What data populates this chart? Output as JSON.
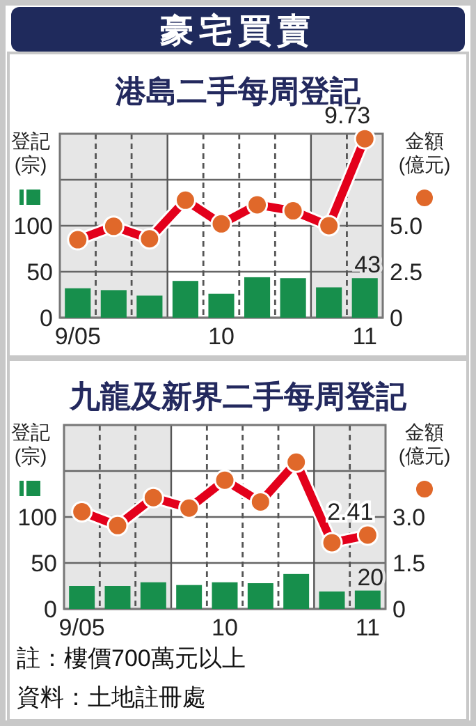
{
  "chart_data": [
    {
      "type": "other",
      "title": "豪宅買賣"
    },
    {
      "type": "bar",
      "title": "港島二手每周登記",
      "ylabel": "登記\n(宗)",
      "y2label": "金額\n(億元)",
      "categories": [
        "9/05",
        null,
        null,
        null,
        "10",
        null,
        null,
        null,
        "11"
      ],
      "series": [
        {
          "type": "bar",
          "color": "#178f4c",
          "values": [
            32,
            30,
            24,
            40,
            26,
            44,
            43,
            33,
            43
          ],
          "value_labels": [
            null,
            null,
            null,
            null,
            null,
            null,
            null,
            null,
            "43"
          ]
        },
        {
          "type": "line",
          "axis": "y2",
          "color": "#e3001b",
          "marker": "circle",
          "values": [
            4.24,
            4.97,
            4.29,
            6.39,
            5.1,
            6.14,
            5.81,
            5.0,
            9.73
          ],
          "value_labels": [
            null,
            null,
            null,
            null,
            null,
            null,
            null,
            null,
            "9.73"
          ]
        }
      ],
      "ylim": [
        0,
        200
      ],
      "yticks": [
        0,
        50,
        100,
        {
          "value": 150,
          "label": null
        }
      ],
      "y2lim": [
        0,
        10
      ],
      "y2ticks": [
        0,
        {
          "value": 2.5,
          "label": "2.5"
        },
        {
          "value": 5,
          "label": "5.0"
        }
      ],
      "grid": true
    },
    {
      "type": "bar",
      "title": "九龍及新界二手每周登記",
      "ylabel": "登記\n(宗)",
      "y2label": "金額\n(億元)",
      "categories": [
        "9/05",
        null,
        null,
        null,
        "10",
        null,
        null,
        null,
        "11"
      ],
      "series": [
        {
          "type": "bar",
          "color": "#178f4c",
          "values": [
            25,
            25,
            29,
            26,
            29,
            28,
            38,
            19,
            20
          ],
          "value_labels": [
            null,
            null,
            null,
            null,
            null,
            null,
            null,
            null,
            "20"
          ]
        },
        {
          "type": "line",
          "axis": "y2",
          "color": "#e3001b",
          "marker": "circle",
          "values": [
            3.17,
            2.72,
            3.63,
            3.29,
            4.2,
            3.49,
            4.79,
            2.16,
            2.41
          ],
          "value_labels": [
            null,
            null,
            null,
            null,
            null,
            null,
            null,
            null,
            "2.41"
          ]
        }
      ],
      "ylim": [
        0,
        200
      ],
      "yticks": [
        0,
        50,
        100,
        {
          "value": 150,
          "label": null
        }
      ],
      "y2lim": [
        0,
        6
      ],
      "y2ticks": [
        0,
        {
          "value": 1.5,
          "label": "1.5"
        },
        {
          "value": 3,
          "label": "3.0"
        }
      ],
      "grid": true,
      "annotations": [
        "註：樓價700萬元以上",
        "資料：土地註冊處"
      ]
    }
  ]
}
